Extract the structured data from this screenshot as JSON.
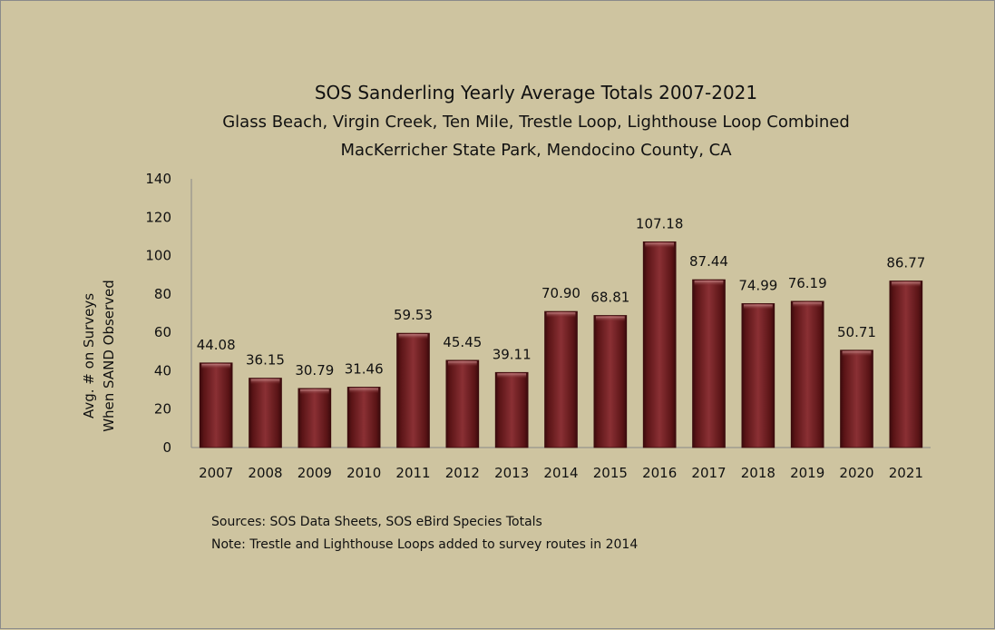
{
  "chart_data": {
    "type": "bar",
    "title": "SOS Sanderling Yearly Average Totals 2007-2021",
    "subtitle_lines": [
      "Glass Beach, Virgin Creek, Ten Mile, Trestle Loop, Lighthouse Loop Combined",
      "MacKerricher State Park, Mendocino County, CA"
    ],
    "ylabel_lines": [
      "Avg. # on Surveys",
      "When SAND Observed"
    ],
    "xlabel": "",
    "ylim": [
      0,
      140
    ],
    "yticks": [
      0,
      20,
      40,
      60,
      80,
      100,
      120,
      140
    ],
    "categories": [
      "2007",
      "2008",
      "2009",
      "2010",
      "2011",
      "2012",
      "2013",
      "2014",
      "2015",
      "2016",
      "2017",
      "2018",
      "2019",
      "2020",
      "2021"
    ],
    "values": [
      44.08,
      36.15,
      30.79,
      31.46,
      59.53,
      45.45,
      39.11,
      70.9,
      68.81,
      107.18,
      87.44,
      74.99,
      76.19,
      50.71,
      86.77
    ],
    "data_labels": [
      "44.08",
      "36.15",
      "30.79",
      "31.46",
      "59.53",
      "45.45",
      "39.11",
      "70.90",
      "68.81",
      "107.18",
      "87.44",
      "74.99",
      "76.19",
      "50.71",
      "86.77"
    ],
    "grid": false,
    "legend": "none",
    "bar_color": "#6e1c1e",
    "background_color": "#cec4a0",
    "notes": [
      "Sources:  SOS Data Sheets, SOS eBird Species Totals",
      "Note:  Trestle and Lighthouse Loops added to survey routes in 2014"
    ]
  }
}
